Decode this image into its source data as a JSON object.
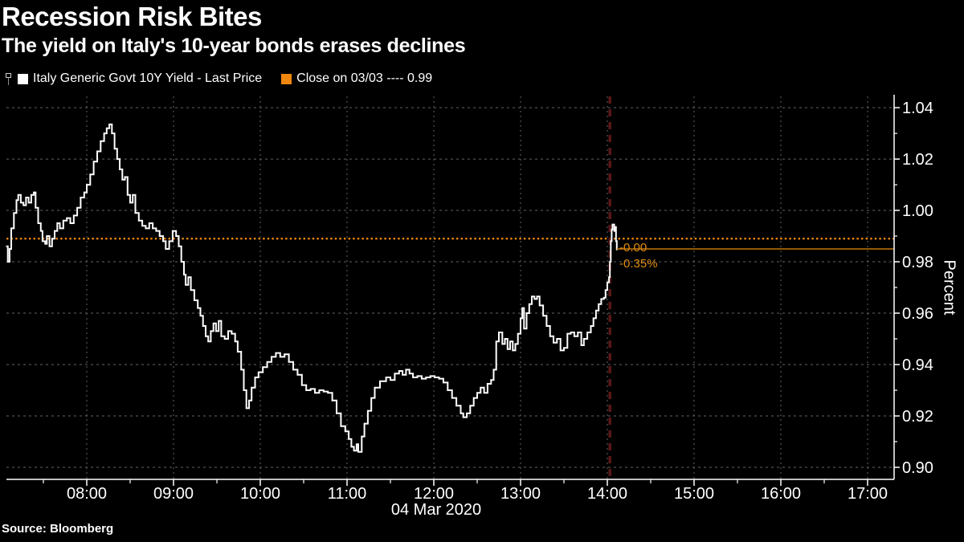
{
  "header": {
    "title": "Recession Risk Bites",
    "subtitle": "The yield on Italy's 10-year bonds erases declines"
  },
  "source_label": "Source: Bloomberg",
  "colors": {
    "background": "#000000",
    "series_line": "#ffffff",
    "accent_orange": "#F0870E",
    "annotation_orange": "#E08B0E",
    "last_price_line": "#C6780A",
    "grid": "#646464",
    "axis": "#ffffff",
    "time_marker_red": "#5A1717"
  },
  "chart_data": {
    "type": "line",
    "title": "Recession Risk Bites",
    "subtitle": "The yield on Italy's 10-year bonds erases declines",
    "ylabel": "Percent",
    "date_label": "04 Mar 2020",
    "legend": [
      {
        "label": "Italy Generic Govt 10Y Yield - Last Price",
        "color": "#ffffff",
        "marker": "flag-square"
      },
      {
        "label": "Close on 03/03 ---- 0.99",
        "color": "#F0870E"
      }
    ],
    "annotations": {
      "change": "-0.00",
      "pct_change": "-0.35%"
    },
    "grid": true,
    "legend_position": "top-left",
    "x_range_hours": [
      7.074,
      17.306
    ],
    "ylim": [
      0.8953,
      1.0444
    ],
    "x_ticks": [
      {
        "t": 8,
        "label": "08:00"
      },
      {
        "t": 9,
        "label": "09:00"
      },
      {
        "t": 10,
        "label": "10:00"
      },
      {
        "t": 11,
        "label": "11:00"
      },
      {
        "t": 12,
        "label": "12:00"
      },
      {
        "t": 13,
        "label": "13:00"
      },
      {
        "t": 14,
        "label": "14:00"
      },
      {
        "t": 15,
        "label": "15:00"
      },
      {
        "t": 16,
        "label": "16:00"
      },
      {
        "t": 17,
        "label": "17:00"
      }
    ],
    "x_minor_ticks": [
      7.5,
      8.5,
      9.5,
      10.5,
      11.5,
      12.5,
      13.5,
      14.5,
      15.5,
      16.5
    ],
    "y_ticks": [
      {
        "v": 0.9,
        "label": "0.90"
      },
      {
        "v": 0.92,
        "label": "0.92"
      },
      {
        "v": 0.94,
        "label": "0.94"
      },
      {
        "v": 0.96,
        "label": "0.96"
      },
      {
        "v": 0.98,
        "label": "0.98"
      },
      {
        "v": 1.0,
        "label": "1.00"
      },
      {
        "v": 1.02,
        "label": "1.02"
      },
      {
        "v": 1.04,
        "label": "1.04"
      }
    ],
    "y_minor_ticks": [
      0.91,
      0.93,
      0.95,
      0.97,
      0.99,
      1.01,
      1.03
    ],
    "close_line": {
      "value": 0.989,
      "label_value": "0.99",
      "date": "03/03",
      "style": "dotted",
      "color": "#F0870E"
    },
    "last_price": {
      "value": 0.985,
      "from_time": 14.11,
      "color": "#C6780A"
    },
    "time_marker": {
      "time": 14.03,
      "color": "#5A1717"
    },
    "series": [
      {
        "name": "Italy Generic Govt 10Y Yield - Last Price",
        "color": "#ffffff",
        "points": [
          [
            7.07,
            0.986
          ],
          [
            7.09,
            0.98
          ],
          [
            7.11,
            0.985
          ],
          [
            7.13,
            0.993
          ],
          [
            7.16,
            0.999
          ],
          [
            7.19,
            1.004
          ],
          [
            7.21,
            1.006
          ],
          [
            7.24,
            1.003
          ],
          [
            7.27,
            1.002
          ],
          [
            7.3,
            1.005
          ],
          [
            7.33,
            1.003
          ],
          [
            7.36,
            1.006
          ],
          [
            7.39,
            1.007
          ],
          [
            7.41,
            1.001
          ],
          [
            7.44,
            0.995
          ],
          [
            7.47,
            0.992
          ],
          [
            7.49,
            0.988
          ],
          [
            7.52,
            0.987
          ],
          [
            7.54,
            0.99
          ],
          [
            7.57,
            0.986
          ],
          [
            7.6,
            0.989
          ],
          [
            7.63,
            0.992
          ],
          [
            7.66,
            0.995
          ],
          [
            7.69,
            0.993
          ],
          [
            7.73,
            0.996
          ],
          [
            7.77,
            0.997
          ],
          [
            7.81,
            0.995
          ],
          [
            7.85,
            0.998
          ],
          [
            7.89,
            1.001
          ],
          [
            7.93,
            1.005
          ],
          [
            7.97,
            1.007
          ],
          [
            8.0,
            1.01
          ],
          [
            8.04,
            1.014
          ],
          [
            8.08,
            1.019
          ],
          [
            8.12,
            1.023
          ],
          [
            8.16,
            1.027
          ],
          [
            8.2,
            1.03
          ],
          [
            8.23,
            1.032
          ],
          [
            8.26,
            1.0335
          ],
          [
            8.29,
            1.03
          ],
          [
            8.32,
            1.024
          ],
          [
            8.35,
            1.02
          ],
          [
            8.38,
            1.016
          ],
          [
            8.41,
            1.012
          ],
          [
            8.44,
            1.013
          ],
          [
            8.47,
            1.006
          ],
          [
            8.5,
            1.003
          ],
          [
            8.53,
            1.006
          ],
          [
            8.56,
            0.999
          ],
          [
            8.6,
            0.996
          ],
          [
            8.64,
            0.994
          ],
          [
            8.68,
            0.993
          ],
          [
            8.72,
            0.995
          ],
          [
            8.76,
            0.993
          ],
          [
            8.8,
            0.992
          ],
          [
            8.84,
            0.99
          ],
          [
            8.88,
            0.988
          ],
          [
            8.91,
            0.985
          ],
          [
            8.95,
            0.988
          ],
          [
            8.99,
            0.992
          ],
          [
            9.03,
            0.99
          ],
          [
            9.06,
            0.986
          ],
          [
            9.09,
            0.98
          ],
          [
            9.12,
            0.975
          ],
          [
            9.14,
            0.971
          ],
          [
            9.17,
            0.974
          ],
          [
            9.2,
            0.969
          ],
          [
            9.24,
            0.965
          ],
          [
            9.28,
            0.962
          ],
          [
            9.31,
            0.959
          ],
          [
            9.34,
            0.955
          ],
          [
            9.37,
            0.951
          ],
          [
            9.4,
            0.949
          ],
          [
            9.43,
            0.953
          ],
          [
            9.46,
            0.956
          ],
          [
            9.49,
            0.953
          ],
          [
            9.52,
            0.957
          ],
          [
            9.55,
            0.951
          ],
          [
            9.59,
            0.95
          ],
          [
            9.63,
            0.953
          ],
          [
            9.67,
            0.952
          ],
          [
            9.71,
            0.949
          ],
          [
            9.74,
            0.945
          ],
          [
            9.78,
            0.938
          ],
          [
            9.81,
            0.93
          ],
          [
            9.84,
            0.923
          ],
          [
            9.87,
            0.926
          ],
          [
            9.9,
            0.931
          ],
          [
            9.94,
            0.935
          ],
          [
            9.98,
            0.937
          ],
          [
            10.03,
            0.939
          ],
          [
            10.08,
            0.941
          ],
          [
            10.13,
            0.943
          ],
          [
            10.18,
            0.9445
          ],
          [
            10.23,
            0.943
          ],
          [
            10.28,
            0.944
          ],
          [
            10.33,
            0.941
          ],
          [
            10.38,
            0.938
          ],
          [
            10.43,
            0.936
          ],
          [
            10.48,
            0.932
          ],
          [
            10.53,
            0.93
          ],
          [
            10.58,
            0.9305
          ],
          [
            10.63,
            0.929
          ],
          [
            10.68,
            0.93
          ],
          [
            10.73,
            0.9295
          ],
          [
            10.78,
            0.929
          ],
          [
            10.83,
            0.926
          ],
          [
            10.88,
            0.921
          ],
          [
            10.93,
            0.916
          ],
          [
            10.98,
            0.914
          ],
          [
            11.02,
            0.911
          ],
          [
            11.05,
            0.908
          ],
          [
            11.08,
            0.9065
          ],
          [
            11.11,
            0.909
          ],
          [
            11.13,
            0.906
          ],
          [
            11.17,
            0.912
          ],
          [
            11.2,
            0.917
          ],
          [
            11.24,
            0.922
          ],
          [
            11.28,
            0.927
          ],
          [
            11.32,
            0.931
          ],
          [
            11.38,
            0.9335
          ],
          [
            11.45,
            0.935
          ],
          [
            11.5,
            0.934
          ],
          [
            11.55,
            0.9365
          ],
          [
            11.6,
            0.9375
          ],
          [
            11.64,
            0.936
          ],
          [
            11.68,
            0.938
          ],
          [
            11.72,
            0.9365
          ],
          [
            11.76,
            0.935
          ],
          [
            11.81,
            0.9355
          ],
          [
            11.86,
            0.9345
          ],
          [
            11.91,
            0.935
          ],
          [
            11.96,
            0.9355
          ],
          [
            12.01,
            0.935
          ],
          [
            12.06,
            0.9345
          ],
          [
            12.11,
            0.933
          ],
          [
            12.16,
            0.93
          ],
          [
            12.21,
            0.927
          ],
          [
            12.26,
            0.924
          ],
          [
            12.31,
            0.921
          ],
          [
            12.34,
            0.9195
          ],
          [
            12.38,
            0.921
          ],
          [
            12.42,
            0.924
          ],
          [
            12.46,
            0.927
          ],
          [
            12.5,
            0.929
          ],
          [
            12.54,
            0.931
          ],
          [
            12.58,
            0.929
          ],
          [
            12.62,
            0.9325
          ],
          [
            12.66,
            0.934
          ],
          [
            12.69,
            0.938
          ],
          [
            12.72,
            0.949
          ],
          [
            12.75,
            0.9525
          ],
          [
            12.79,
            0.948
          ],
          [
            12.82,
            0.95
          ],
          [
            12.85,
            0.946
          ],
          [
            12.88,
            0.949
          ],
          [
            12.91,
            0.9455
          ],
          [
            12.94,
            0.948
          ],
          [
            12.97,
            0.952
          ],
          [
            13.0,
            0.958
          ],
          [
            13.02,
            0.962
          ],
          [
            13.04,
            0.954
          ],
          [
            13.07,
            0.96
          ],
          [
            13.1,
            0.9635
          ],
          [
            13.13,
            0.9665
          ],
          [
            13.16,
            0.9655
          ],
          [
            13.19,
            0.9665
          ],
          [
            13.22,
            0.963
          ],
          [
            13.26,
            0.959
          ],
          [
            13.3,
            0.955
          ],
          [
            13.34,
            0.951
          ],
          [
            13.38,
            0.9485
          ],
          [
            13.42,
            0.95
          ],
          [
            13.46,
            0.9455
          ],
          [
            13.5,
            0.9465
          ],
          [
            13.54,
            0.952
          ],
          [
            13.58,
            0.9525
          ],
          [
            13.62,
            0.951
          ],
          [
            13.66,
            0.9525
          ],
          [
            13.7,
            0.9475
          ],
          [
            13.73,
            0.95
          ],
          [
            13.77,
            0.9525
          ],
          [
            13.81,
            0.955
          ],
          [
            13.84,
            0.958
          ],
          [
            13.87,
            0.961
          ],
          [
            13.9,
            0.9635
          ],
          [
            13.93,
            0.9655
          ],
          [
            13.96,
            0.966
          ],
          [
            13.98,
            0.969
          ],
          [
            14.0,
            0.972
          ],
          [
            14.02,
            0.974
          ],
          [
            14.03,
            0.98
          ],
          [
            14.04,
            0.988
          ],
          [
            14.05,
            0.9925
          ],
          [
            14.06,
            0.9945
          ],
          [
            14.08,
            0.992
          ],
          [
            14.09,
            0.9935
          ],
          [
            14.1,
            0.988
          ],
          [
            14.11,
            0.9845
          ]
        ]
      }
    ]
  }
}
